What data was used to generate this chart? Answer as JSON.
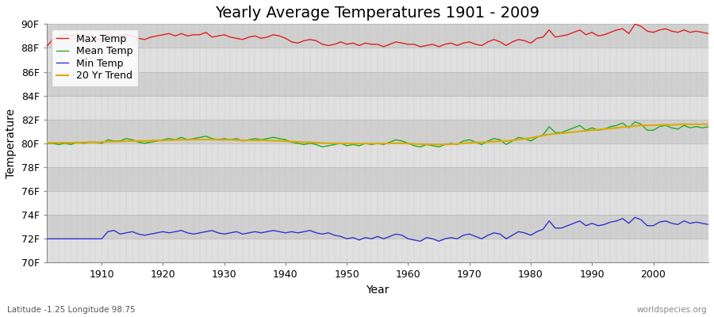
{
  "title": "Yearly Average Temperatures 1901 - 2009",
  "xlabel": "Year",
  "ylabel": "Temperature",
  "footnote_left": "Latitude -1.25 Longitude 98.75",
  "footnote_right": "worldspecies.org",
  "years": [
    1901,
    1902,
    1903,
    1904,
    1905,
    1906,
    1907,
    1908,
    1909,
    1910,
    1911,
    1912,
    1913,
    1914,
    1915,
    1916,
    1917,
    1918,
    1919,
    1920,
    1921,
    1922,
    1923,
    1924,
    1925,
    1926,
    1927,
    1928,
    1929,
    1930,
    1931,
    1932,
    1933,
    1934,
    1935,
    1936,
    1937,
    1938,
    1939,
    1940,
    1941,
    1942,
    1943,
    1944,
    1945,
    1946,
    1947,
    1948,
    1949,
    1950,
    1951,
    1952,
    1953,
    1954,
    1955,
    1956,
    1957,
    1958,
    1959,
    1960,
    1961,
    1962,
    1963,
    1964,
    1965,
    1966,
    1967,
    1968,
    1969,
    1970,
    1971,
    1972,
    1973,
    1974,
    1975,
    1976,
    1977,
    1978,
    1979,
    1980,
    1981,
    1982,
    1983,
    1984,
    1985,
    1986,
    1987,
    1988,
    1989,
    1990,
    1991,
    1992,
    1993,
    1994,
    1995,
    1996,
    1997,
    1998,
    1999,
    2000,
    2001,
    2002,
    2003,
    2004,
    2005,
    2006,
    2007,
    2008,
    2009
  ],
  "max_temp": [
    88.1,
    88.7,
    88.9,
    89.1,
    89.0,
    89.2,
    89.0,
    89.1,
    88.8,
    88.6,
    89.2,
    88.9,
    89.0,
    89.1,
    89.0,
    88.8,
    88.7,
    88.9,
    89.0,
    89.1,
    89.2,
    89.0,
    89.2,
    89.0,
    89.1,
    89.1,
    89.3,
    88.9,
    89.0,
    89.1,
    88.9,
    88.8,
    88.7,
    88.9,
    89.0,
    88.8,
    88.9,
    89.1,
    89.0,
    88.8,
    88.5,
    88.4,
    88.6,
    88.7,
    88.6,
    88.3,
    88.2,
    88.3,
    88.5,
    88.3,
    88.4,
    88.2,
    88.4,
    88.3,
    88.3,
    88.1,
    88.3,
    88.5,
    88.4,
    88.3,
    88.3,
    88.1,
    88.2,
    88.3,
    88.1,
    88.3,
    88.4,
    88.2,
    88.4,
    88.5,
    88.3,
    88.2,
    88.5,
    88.7,
    88.5,
    88.2,
    88.5,
    88.7,
    88.6,
    88.4,
    88.8,
    88.9,
    89.5,
    88.9,
    89.0,
    89.1,
    89.3,
    89.5,
    89.1,
    89.3,
    89.0,
    89.1,
    89.3,
    89.5,
    89.6,
    89.2,
    90.0,
    89.8,
    89.4,
    89.3,
    89.5,
    89.6,
    89.4,
    89.3,
    89.5,
    89.3,
    89.4,
    89.3,
    89.2
  ],
  "mean_temp": [
    80.0,
    80.0,
    79.9,
    80.0,
    79.9,
    80.1,
    80.0,
    80.1,
    80.1,
    80.0,
    80.3,
    80.2,
    80.2,
    80.4,
    80.3,
    80.1,
    80.0,
    80.1,
    80.2,
    80.3,
    80.4,
    80.3,
    80.5,
    80.3,
    80.4,
    80.5,
    80.6,
    80.4,
    80.3,
    80.4,
    80.3,
    80.4,
    80.2,
    80.3,
    80.4,
    80.3,
    80.4,
    80.5,
    80.4,
    80.3,
    80.1,
    80.0,
    79.9,
    80.0,
    79.9,
    79.7,
    79.8,
    79.9,
    80.0,
    79.8,
    79.9,
    79.8,
    80.0,
    79.9,
    80.0,
    79.9,
    80.1,
    80.3,
    80.2,
    80.0,
    79.8,
    79.7,
    79.9,
    79.8,
    79.7,
    79.9,
    80.0,
    79.9,
    80.2,
    80.3,
    80.1,
    79.9,
    80.2,
    80.4,
    80.3,
    79.9,
    80.2,
    80.5,
    80.4,
    80.2,
    80.5,
    80.7,
    81.4,
    80.9,
    80.9,
    81.1,
    81.3,
    81.5,
    81.1,
    81.3,
    81.1,
    81.2,
    81.4,
    81.5,
    81.7,
    81.3,
    81.8,
    81.6,
    81.1,
    81.1,
    81.4,
    81.5,
    81.3,
    81.2,
    81.5,
    81.3,
    81.4,
    81.3,
    81.4
  ],
  "min_temp": [
    72.0,
    72.0,
    72.0,
    72.0,
    72.0,
    72.0,
    72.0,
    72.0,
    72.0,
    72.0,
    72.6,
    72.7,
    72.4,
    72.5,
    72.6,
    72.4,
    72.3,
    72.4,
    72.5,
    72.6,
    72.5,
    72.6,
    72.7,
    72.5,
    72.4,
    72.5,
    72.6,
    72.7,
    72.5,
    72.4,
    72.5,
    72.6,
    72.4,
    72.5,
    72.6,
    72.5,
    72.6,
    72.7,
    72.6,
    72.5,
    72.6,
    72.5,
    72.6,
    72.7,
    72.5,
    72.4,
    72.5,
    72.3,
    72.2,
    72.0,
    72.1,
    71.9,
    72.1,
    72.0,
    72.2,
    72.0,
    72.2,
    72.4,
    72.3,
    72.0,
    71.9,
    71.8,
    72.1,
    72.0,
    71.8,
    72.0,
    72.1,
    72.0,
    72.3,
    72.4,
    72.2,
    72.0,
    72.3,
    72.5,
    72.4,
    72.0,
    72.3,
    72.6,
    72.5,
    72.3,
    72.6,
    72.8,
    73.5,
    72.9,
    72.9,
    73.1,
    73.3,
    73.5,
    73.1,
    73.3,
    73.1,
    73.2,
    73.4,
    73.5,
    73.7,
    73.3,
    73.8,
    73.6,
    73.1,
    73.1,
    73.4,
    73.5,
    73.3,
    73.2,
    73.5,
    73.3,
    73.4,
    73.3,
    73.2
  ],
  "trend_20yr": [
    80.05,
    80.05,
    80.05,
    80.05,
    80.05,
    80.05,
    80.08,
    80.08,
    80.08,
    80.1,
    80.15,
    80.15,
    80.15,
    80.18,
    80.2,
    80.2,
    80.2,
    80.22,
    80.25,
    80.25,
    80.28,
    80.28,
    80.3,
    80.3,
    80.32,
    80.32,
    80.32,
    80.32,
    80.3,
    80.3,
    80.3,
    80.28,
    80.25,
    80.25,
    80.25,
    80.25,
    80.25,
    80.22,
    80.2,
    80.18,
    80.15,
    80.12,
    80.1,
    80.08,
    80.05,
    80.02,
    80.0,
    80.0,
    80.0,
    79.98,
    79.98,
    79.98,
    79.98,
    79.98,
    79.98,
    79.98,
    80.0,
    80.0,
    80.0,
    79.98,
    79.95,
    79.93,
    79.92,
    79.9,
    79.9,
    79.9,
    79.93,
    79.95,
    80.0,
    80.05,
    80.08,
    80.08,
    80.12,
    80.15,
    80.18,
    80.2,
    80.25,
    80.32,
    80.38,
    80.45,
    80.55,
    80.65,
    80.75,
    80.8,
    80.85,
    80.9,
    80.95,
    81.0,
    81.05,
    81.1,
    81.15,
    81.2,
    81.25,
    81.3,
    81.35,
    81.4,
    81.45,
    81.5,
    81.5,
    81.52,
    81.55,
    81.55,
    81.55,
    81.58,
    81.6,
    81.6,
    81.6,
    81.6,
    81.6
  ],
  "max_color": "#dd2222",
  "mean_color": "#22aa22",
  "min_color": "#3333cc",
  "trend_color": "#ddaa00",
  "plot_bg_color": "#dcdcdc",
  "band_color_dark": "#d0d0d0",
  "band_color_light": "#e0e0e0",
  "fig_bg_color": "#ffffff",
  "grid_line_color": "#bbbbbb",
  "ylim": [
    70,
    90
  ],
  "yticks": [
    70,
    72,
    74,
    76,
    78,
    80,
    82,
    84,
    86,
    88,
    90
  ],
  "ytick_labels": [
    "70F",
    "72F",
    "74F",
    "76F",
    "78F",
    "80F",
    "82F",
    "84F",
    "86F",
    "88F",
    "90F"
  ],
  "xtick_positions": [
    1910,
    1920,
    1930,
    1940,
    1950,
    1960,
    1970,
    1980,
    1990,
    2000
  ],
  "xlim": [
    1901,
    2009
  ],
  "title_fontsize": 14,
  "label_fontsize": 10,
  "tick_fontsize": 9,
  "legend_fontsize": 9,
  "linewidth": 1.0,
  "trend_linewidth": 1.5
}
